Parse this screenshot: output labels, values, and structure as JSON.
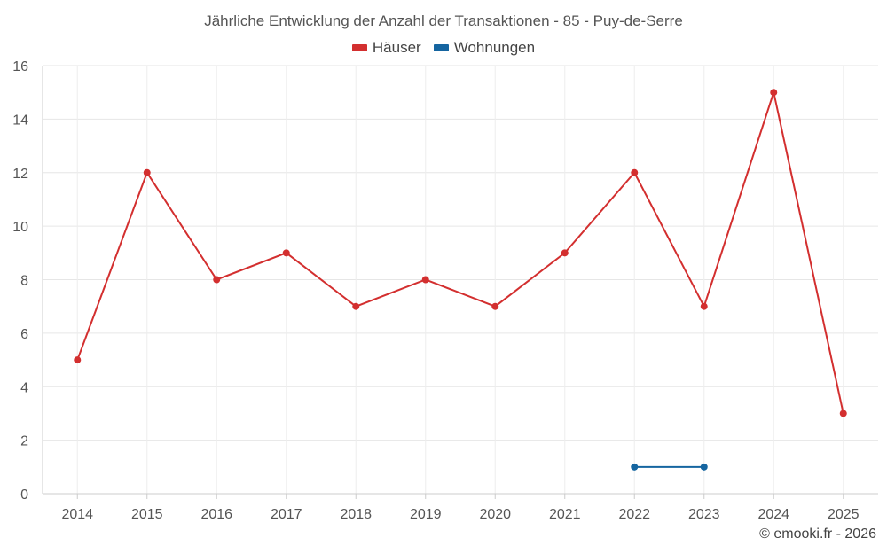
{
  "chart_data": {
    "type": "line",
    "title": "Jährliche Entwicklung der Anzahl der Transaktionen - 85 - Puy-de-Serre",
    "categories": [
      "2014",
      "2015",
      "2016",
      "2017",
      "2018",
      "2019",
      "2020",
      "2021",
      "2022",
      "2023",
      "2024",
      "2025"
    ],
    "y_ticks": [
      "0",
      "2",
      "4",
      "6",
      "8",
      "10",
      "12",
      "14",
      "16"
    ],
    "ylim": [
      0,
      16
    ],
    "grid": true,
    "legend_position": "top-center",
    "series": [
      {
        "name": "Häuser",
        "color": "#d32f2f",
        "values": [
          5,
          12,
          8,
          9,
          7,
          8,
          7,
          9,
          12,
          7,
          15,
          3
        ]
      },
      {
        "name": "Wohnungen",
        "color": "#1565a0",
        "values": [
          null,
          null,
          null,
          null,
          null,
          null,
          null,
          null,
          1,
          1,
          null,
          null
        ]
      }
    ]
  },
  "credit": "© emooki.fr - 2026"
}
